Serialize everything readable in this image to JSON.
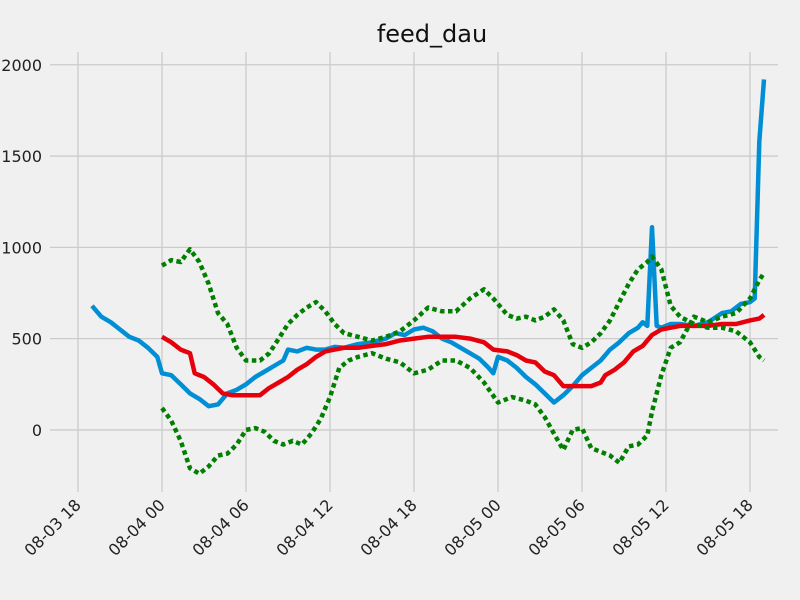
{
  "chart_data": {
    "type": "line",
    "title": "feed_dau",
    "xlabel": "",
    "ylabel": "",
    "grid": true,
    "xlim": [
      "08-03 16:00",
      "08-05 20:00"
    ],
    "ylim": [
      -340,
      2070
    ],
    "x_ticks": [
      "08-03 18",
      "08-04 00",
      "08-04 06",
      "08-04 12",
      "08-04 18",
      "08-05 00",
      "08-05 06",
      "08-05 12",
      "08-05 18"
    ],
    "y_ticks": [
      0,
      500,
      1000,
      1500,
      2000
    ],
    "series": [
      {
        "color": "#008fd5",
        "style": "solid",
        "points": [
          [
            "08-03 19:00",
            680
          ],
          [
            "08-03 19:40",
            620
          ],
          [
            "08-03 20:20",
            590
          ],
          [
            "08-03 21:00",
            550
          ],
          [
            "08-03 21:40",
            510
          ],
          [
            "08-03 22:20",
            490
          ],
          [
            "08-03 23:00",
            450
          ],
          [
            "08-03 23:40",
            400
          ],
          [
            "08-04 00:00",
            310
          ],
          [
            "08-04 00:40",
            300
          ],
          [
            "08-04 01:20",
            250
          ],
          [
            "08-04 02:00",
            200
          ],
          [
            "08-04 02:40",
            170
          ],
          [
            "08-04 03:20",
            130
          ],
          [
            "08-04 04:00",
            140
          ],
          [
            "08-04 04:40",
            200
          ],
          [
            "08-04 05:20",
            220
          ],
          [
            "08-04 06:00",
            250
          ],
          [
            "08-04 06:40",
            290
          ],
          [
            "08-04 07:20",
            320
          ],
          [
            "08-04 08:00",
            350
          ],
          [
            "08-04 08:40",
            380
          ],
          [
            "08-04 09:00",
            440
          ],
          [
            "08-04 09:40",
            430
          ],
          [
            "08-04 10:20",
            450
          ],
          [
            "08-04 11:00",
            440
          ],
          [
            "08-04 11:40",
            440
          ],
          [
            "08-04 12:20",
            455
          ],
          [
            "08-04 13:00",
            450
          ],
          [
            "08-04 14:00",
            470
          ],
          [
            "08-04 15:00",
            480
          ],
          [
            "08-04 16:00",
            500
          ],
          [
            "08-04 16:40",
            530
          ],
          [
            "08-04 17:20",
            520
          ],
          [
            "08-04 18:00",
            550
          ],
          [
            "08-04 18:40",
            560
          ],
          [
            "08-04 19:20",
            540
          ],
          [
            "08-04 20:00",
            500
          ],
          [
            "08-04 20:40",
            480
          ],
          [
            "08-04 21:20",
            450
          ],
          [
            "08-04 22:00",
            420
          ],
          [
            "08-04 22:40",
            390
          ],
          [
            "08-04 23:20",
            340
          ],
          [
            "08-04 23:40",
            310
          ],
          [
            "08-05 00:00",
            400
          ],
          [
            "08-05 00:40",
            380
          ],
          [
            "08-05 01:20",
            340
          ],
          [
            "08-05 02:00",
            290
          ],
          [
            "08-05 02:40",
            250
          ],
          [
            "08-05 03:20",
            200
          ],
          [
            "08-05 04:00",
            150
          ],
          [
            "08-05 04:40",
            190
          ],
          [
            "08-05 05:20",
            240
          ],
          [
            "08-05 06:00",
            300
          ],
          [
            "08-05 06:40",
            340
          ],
          [
            "08-05 07:20",
            380
          ],
          [
            "08-05 08:00",
            440
          ],
          [
            "08-05 08:40",
            480
          ],
          [
            "08-05 09:20",
            530
          ],
          [
            "08-05 10:00",
            560
          ],
          [
            "08-05 10:20",
            590
          ],
          [
            "08-05 10:40",
            570
          ],
          [
            "08-05 11:00",
            1110
          ],
          [
            "08-05 11:20",
            570
          ],
          [
            "08-05 11:40",
            560
          ],
          [
            "08-05 12:20",
            580
          ],
          [
            "08-05 13:00",
            580
          ],
          [
            "08-05 14:00",
            570
          ],
          [
            "08-05 15:00",
            590
          ],
          [
            "08-05 16:00",
            640
          ],
          [
            "08-05 16:40",
            650
          ],
          [
            "08-05 17:20",
            690
          ],
          [
            "08-05 18:00",
            700
          ],
          [
            "08-05 18:20",
            720
          ],
          [
            "08-05 18:40",
            1580
          ],
          [
            "08-05 19:00",
            1920
          ]
        ]
      },
      {
        "color": "#e5000b",
        "style": "solid",
        "points": [
          [
            "08-04 00:00",
            510
          ],
          [
            "08-04 00:40",
            480
          ],
          [
            "08-04 01:20",
            440
          ],
          [
            "08-04 02:00",
            420
          ],
          [
            "08-04 02:20",
            310
          ],
          [
            "08-04 03:00",
            290
          ],
          [
            "08-04 03:40",
            250
          ],
          [
            "08-04 04:20",
            200
          ],
          [
            "08-04 05:00",
            190
          ],
          [
            "08-04 06:00",
            190
          ],
          [
            "08-04 07:00",
            190
          ],
          [
            "08-04 07:40",
            230
          ],
          [
            "08-04 08:20",
            260
          ],
          [
            "08-04 09:00",
            290
          ],
          [
            "08-04 09:40",
            330
          ],
          [
            "08-04 10:20",
            360
          ],
          [
            "08-04 11:00",
            400
          ],
          [
            "08-04 11:40",
            430
          ],
          [
            "08-04 12:20",
            440
          ],
          [
            "08-04 13:00",
            450
          ],
          [
            "08-04 14:00",
            450
          ],
          [
            "08-04 15:00",
            460
          ],
          [
            "08-04 16:00",
            470
          ],
          [
            "08-04 17:00",
            490
          ],
          [
            "08-04 18:00",
            500
          ],
          [
            "08-04 19:00",
            510
          ],
          [
            "08-04 20:00",
            510
          ],
          [
            "08-04 21:00",
            510
          ],
          [
            "08-04 22:00",
            500
          ],
          [
            "08-04 23:00",
            480
          ],
          [
            "08-04 23:40",
            440
          ],
          [
            "08-05 00:40",
            430
          ],
          [
            "08-05 01:20",
            410
          ],
          [
            "08-05 02:00",
            380
          ],
          [
            "08-05 02:40",
            370
          ],
          [
            "08-05 03:20",
            320
          ],
          [
            "08-05 04:00",
            300
          ],
          [
            "08-05 04:40",
            240
          ],
          [
            "08-05 05:40",
            240
          ],
          [
            "08-05 06:40",
            240
          ],
          [
            "08-05 07:20",
            260
          ],
          [
            "08-05 07:40",
            300
          ],
          [
            "08-05 08:20",
            330
          ],
          [
            "08-05 09:00",
            370
          ],
          [
            "08-05 09:40",
            430
          ],
          [
            "08-05 10:20",
            460
          ],
          [
            "08-05 11:00",
            520
          ],
          [
            "08-05 11:40",
            550
          ],
          [
            "08-05 12:20",
            560
          ],
          [
            "08-05 13:00",
            570
          ],
          [
            "08-05 14:00",
            570
          ],
          [
            "08-05 15:00",
            570
          ],
          [
            "08-05 16:00",
            580
          ],
          [
            "08-05 17:00",
            580
          ],
          [
            "08-05 18:00",
            600
          ],
          [
            "08-05 18:40",
            610
          ],
          [
            "08-05 19:00",
            630
          ]
        ]
      },
      {
        "color": "#007f00",
        "style": "dotted",
        "points": [
          [
            "08-04 00:00",
            900
          ],
          [
            "08-04 00:40",
            930
          ],
          [
            "08-04 01:20",
            920
          ],
          [
            "08-04 02:00",
            990
          ],
          [
            "08-04 02:40",
            920
          ],
          [
            "08-04 03:20",
            800
          ],
          [
            "08-04 04:00",
            640
          ],
          [
            "08-04 04:40",
            580
          ],
          [
            "08-04 05:20",
            450
          ],
          [
            "08-04 06:00",
            380
          ],
          [
            "08-04 07:00",
            380
          ],
          [
            "08-04 07:40",
            420
          ],
          [
            "08-04 08:20",
            500
          ],
          [
            "08-04 09:00",
            580
          ],
          [
            "08-04 09:40",
            630
          ],
          [
            "08-04 10:20",
            670
          ],
          [
            "08-04 11:00",
            700
          ],
          [
            "08-04 11:40",
            650
          ],
          [
            "08-04 12:20",
            580
          ],
          [
            "08-04 13:00",
            530
          ],
          [
            "08-04 14:00",
            510
          ],
          [
            "08-04 15:00",
            490
          ],
          [
            "08-04 16:00",
            510
          ],
          [
            "08-04 17:00",
            540
          ],
          [
            "08-04 18:00",
            600
          ],
          [
            "08-04 19:00",
            670
          ],
          [
            "08-04 20:00",
            650
          ],
          [
            "08-04 21:00",
            650
          ],
          [
            "08-04 22:00",
            720
          ],
          [
            "08-04 23:00",
            770
          ],
          [
            "08-04 23:40",
            720
          ],
          [
            "08-05 00:40",
            630
          ],
          [
            "08-05 01:20",
            610
          ],
          [
            "08-05 02:00",
            620
          ],
          [
            "08-05 02:40",
            600
          ],
          [
            "08-05 03:20",
            620
          ],
          [
            "08-05 04:00",
            660
          ],
          [
            "08-05 04:40",
            600
          ],
          [
            "08-05 05:20",
            470
          ],
          [
            "08-05 06:00",
            450
          ],
          [
            "08-05 06:40",
            480
          ],
          [
            "08-05 07:20",
            530
          ],
          [
            "08-05 08:00",
            600
          ],
          [
            "08-05 08:40",
            700
          ],
          [
            "08-05 09:20",
            800
          ],
          [
            "08-05 10:00",
            880
          ],
          [
            "08-05 10:40",
            920
          ],
          [
            "08-05 11:00",
            950
          ],
          [
            "08-05 11:40",
            880
          ],
          [
            "08-05 12:20",
            680
          ],
          [
            "08-05 13:00",
            620
          ],
          [
            "08-05 14:00",
            580
          ],
          [
            "08-05 15:00",
            560
          ],
          [
            "08-05 16:00",
            560
          ],
          [
            "08-05 17:00",
            540
          ],
          [
            "08-05 18:00",
            480
          ],
          [
            "08-05 18:40",
            400
          ],
          [
            "08-05 19:00",
            380
          ]
        ]
      },
      {
        "color": "#007f00",
        "style": "dotted",
        "points": [
          [
            "08-04 00:00",
            120
          ],
          [
            "08-04 00:40",
            50
          ],
          [
            "08-04 01:20",
            -60
          ],
          [
            "08-04 02:00",
            -210
          ],
          [
            "08-04 02:40",
            -240
          ],
          [
            "08-04 03:20",
            -200
          ],
          [
            "08-04 04:00",
            -140
          ],
          [
            "08-04 04:40",
            -130
          ],
          [
            "08-04 05:20",
            -80
          ],
          [
            "08-04 06:00",
            0
          ],
          [
            "08-04 06:40",
            10
          ],
          [
            "08-04 07:20",
            -10
          ],
          [
            "08-04 08:00",
            -60
          ],
          [
            "08-04 08:40",
            -80
          ],
          [
            "08-04 09:20",
            -60
          ],
          [
            "08-04 10:00",
            -80
          ],
          [
            "08-04 10:40",
            -20
          ],
          [
            "08-04 11:20",
            60
          ],
          [
            "08-04 12:00",
            180
          ],
          [
            "08-04 12:40",
            340
          ],
          [
            "08-04 13:20",
            380
          ],
          [
            "08-04 14:00",
            400
          ],
          [
            "08-04 15:00",
            420
          ],
          [
            "08-04 16:00",
            390
          ],
          [
            "08-04 17:00",
            370
          ],
          [
            "08-04 18:00",
            310
          ],
          [
            "08-04 19:00",
            330
          ],
          [
            "08-04 20:00",
            380
          ],
          [
            "08-04 21:00",
            380
          ],
          [
            "08-04 22:00",
            340
          ],
          [
            "08-04 23:00",
            260
          ],
          [
            "08-05 00:00",
            150
          ],
          [
            "08-05 01:00",
            180
          ],
          [
            "08-05 02:00",
            160
          ],
          [
            "08-05 02:40",
            140
          ],
          [
            "08-05 03:20",
            70
          ],
          [
            "08-05 04:00",
            -20
          ],
          [
            "08-05 04:40",
            -110
          ],
          [
            "08-05 05:20",
            0
          ],
          [
            "08-05 06:00",
            10
          ],
          [
            "08-05 06:40",
            -100
          ],
          [
            "08-05 07:20",
            -120
          ],
          [
            "08-05 08:00",
            -140
          ],
          [
            "08-05 08:40",
            -180
          ],
          [
            "08-05 09:20",
            -90
          ],
          [
            "08-05 10:00",
            -80
          ],
          [
            "08-05 10:40",
            -30
          ],
          [
            "08-05 11:00",
            100
          ],
          [
            "08-05 11:40",
            300
          ],
          [
            "08-05 12:20",
            450
          ],
          [
            "08-05 13:00",
            480
          ],
          [
            "08-05 14:00",
            620
          ],
          [
            "08-05 15:00",
            590
          ],
          [
            "08-05 16:00",
            620
          ],
          [
            "08-05 17:00",
            640
          ],
          [
            "08-05 18:00",
            720
          ],
          [
            "08-05 18:40",
            820
          ],
          [
            "08-05 19:00",
            860
          ]
        ]
      }
    ]
  }
}
